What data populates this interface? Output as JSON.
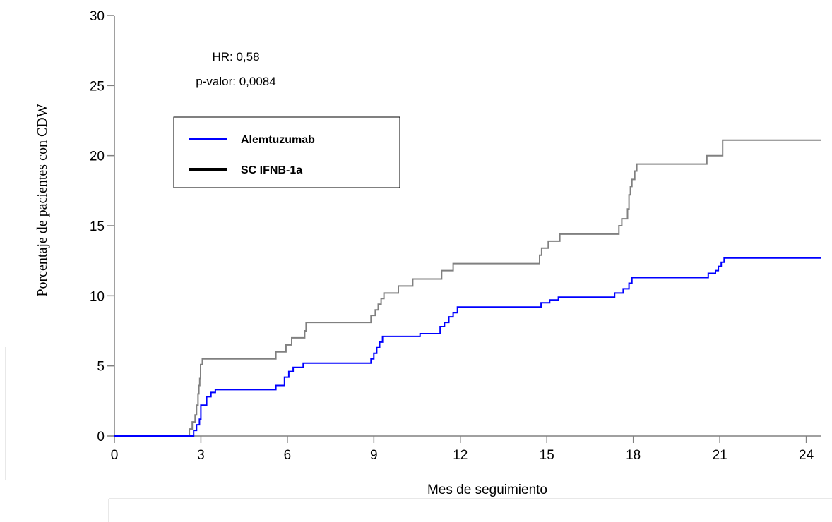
{
  "chart_data": {
    "type": "line",
    "xlabel": "Mes de seguimiento",
    "ylabel": "Porcentaje de pacientes con CDW",
    "xlim": [
      0,
      24.5
    ],
    "ylim": [
      0,
      30
    ],
    "xticks": [
      0,
      3,
      6,
      9,
      12,
      15,
      18,
      21,
      24
    ],
    "yticks": [
      0,
      5,
      10,
      15,
      20,
      25,
      30
    ],
    "grid": false,
    "legend_placement": "upper-left",
    "annotations": [
      "HR: 0,58",
      "p-valor: 0,0084"
    ],
    "series": [
      {
        "name": "Alemtuzumab",
        "color": "#0000ff",
        "line_style": "step",
        "points": [
          [
            0,
            0
          ],
          [
            2.75,
            0
          ],
          [
            2.75,
            0.4
          ],
          [
            2.85,
            0.4
          ],
          [
            2.85,
            0.8
          ],
          [
            2.95,
            0.8
          ],
          [
            2.95,
            1.2
          ],
          [
            3.0,
            1.2
          ],
          [
            3.0,
            2.2
          ],
          [
            3.2,
            2.2
          ],
          [
            3.2,
            2.8
          ],
          [
            3.35,
            2.8
          ],
          [
            3.35,
            3.1
          ],
          [
            3.5,
            3.1
          ],
          [
            3.5,
            3.3
          ],
          [
            5.6,
            3.3
          ],
          [
            5.6,
            3.6
          ],
          [
            5.9,
            3.6
          ],
          [
            5.9,
            4.2
          ],
          [
            6.05,
            4.2
          ],
          [
            6.05,
            4.6
          ],
          [
            6.2,
            4.6
          ],
          [
            6.2,
            4.9
          ],
          [
            6.55,
            4.9
          ],
          [
            6.55,
            5.2
          ],
          [
            8.9,
            5.2
          ],
          [
            8.9,
            5.5
          ],
          [
            9.0,
            5.5
          ],
          [
            9.0,
            5.9
          ],
          [
            9.1,
            5.9
          ],
          [
            9.1,
            6.3
          ],
          [
            9.2,
            6.3
          ],
          [
            9.2,
            6.7
          ],
          [
            9.3,
            6.7
          ],
          [
            9.3,
            7.1
          ],
          [
            10.6,
            7.1
          ],
          [
            10.6,
            7.3
          ],
          [
            11.3,
            7.3
          ],
          [
            11.3,
            7.8
          ],
          [
            11.45,
            7.8
          ],
          [
            11.45,
            8.1
          ],
          [
            11.6,
            8.1
          ],
          [
            11.6,
            8.5
          ],
          [
            11.75,
            8.5
          ],
          [
            11.75,
            8.8
          ],
          [
            11.9,
            8.8
          ],
          [
            11.9,
            9.2
          ],
          [
            14.8,
            9.2
          ],
          [
            14.8,
            9.5
          ],
          [
            15.1,
            9.5
          ],
          [
            15.1,
            9.7
          ],
          [
            15.4,
            9.7
          ],
          [
            15.4,
            9.9
          ],
          [
            17.35,
            9.9
          ],
          [
            17.35,
            10.2
          ],
          [
            17.65,
            10.2
          ],
          [
            17.65,
            10.5
          ],
          [
            17.85,
            10.5
          ],
          [
            17.85,
            10.9
          ],
          [
            17.95,
            10.9
          ],
          [
            17.95,
            11.3
          ],
          [
            20.6,
            11.3
          ],
          [
            20.6,
            11.6
          ],
          [
            20.85,
            11.6
          ],
          [
            20.85,
            11.8
          ],
          [
            20.95,
            11.8
          ],
          [
            20.95,
            12.1
          ],
          [
            21.05,
            12.1
          ],
          [
            21.05,
            12.4
          ],
          [
            21.15,
            12.4
          ],
          [
            21.15,
            12.7
          ],
          [
            24.5,
            12.7
          ]
        ]
      },
      {
        "name": "SC IFNB-1a",
        "color": "#808080",
        "line_style": "step",
        "points": [
          [
            0,
            0
          ],
          [
            2.6,
            0
          ],
          [
            2.6,
            0.5
          ],
          [
            2.7,
            0.5
          ],
          [
            2.7,
            1.0
          ],
          [
            2.8,
            1.0
          ],
          [
            2.8,
            1.5
          ],
          [
            2.85,
            1.5
          ],
          [
            2.85,
            2.2
          ],
          [
            2.9,
            2.2
          ],
          [
            2.9,
            3.0
          ],
          [
            2.93,
            3.0
          ],
          [
            2.93,
            3.6
          ],
          [
            2.96,
            3.6
          ],
          [
            2.96,
            4.1
          ],
          [
            2.99,
            4.1
          ],
          [
            2.99,
            5.1
          ],
          [
            3.05,
            5.1
          ],
          [
            3.05,
            5.5
          ],
          [
            5.6,
            5.5
          ],
          [
            5.6,
            6.0
          ],
          [
            5.95,
            6.0
          ],
          [
            5.95,
            6.5
          ],
          [
            6.15,
            6.5
          ],
          [
            6.15,
            7.0
          ],
          [
            6.6,
            7.0
          ],
          [
            6.6,
            7.5
          ],
          [
            6.65,
            7.5
          ],
          [
            6.65,
            8.1
          ],
          [
            8.9,
            8.1
          ],
          [
            8.9,
            8.6
          ],
          [
            9.05,
            8.6
          ],
          [
            9.05,
            9.0
          ],
          [
            9.15,
            9.0
          ],
          [
            9.15,
            9.4
          ],
          [
            9.25,
            9.4
          ],
          [
            9.25,
            9.8
          ],
          [
            9.35,
            9.8
          ],
          [
            9.35,
            10.2
          ],
          [
            9.85,
            10.2
          ],
          [
            9.85,
            10.7
          ],
          [
            10.35,
            10.7
          ],
          [
            10.35,
            11.2
          ],
          [
            11.35,
            11.2
          ],
          [
            11.35,
            11.8
          ],
          [
            11.75,
            11.8
          ],
          [
            11.75,
            12.3
          ],
          [
            14.75,
            12.3
          ],
          [
            14.75,
            12.9
          ],
          [
            14.82,
            12.9
          ],
          [
            14.82,
            13.4
          ],
          [
            15.05,
            13.4
          ],
          [
            15.05,
            13.9
          ],
          [
            15.45,
            13.9
          ],
          [
            15.45,
            14.4
          ],
          [
            17.5,
            14.4
          ],
          [
            17.5,
            15.0
          ],
          [
            17.6,
            15.0
          ],
          [
            17.6,
            15.5
          ],
          [
            17.8,
            15.5
          ],
          [
            17.8,
            16.2
          ],
          [
            17.85,
            16.2
          ],
          [
            17.85,
            17.2
          ],
          [
            17.9,
            17.2
          ],
          [
            17.9,
            17.8
          ],
          [
            17.95,
            17.8
          ],
          [
            17.95,
            18.3
          ],
          [
            18.05,
            18.3
          ],
          [
            18.05,
            18.9
          ],
          [
            18.12,
            18.9
          ],
          [
            18.12,
            19.4
          ],
          [
            20.55,
            19.4
          ],
          [
            20.55,
            20.0
          ],
          [
            21.1,
            20.0
          ],
          [
            21.1,
            21.1
          ],
          [
            24.5,
            21.1
          ]
        ]
      }
    ]
  },
  "legend": {
    "items": [
      {
        "label": "Alemtuzumab",
        "color": "#0000ff"
      },
      {
        "label": "SC IFNB-1a",
        "color": "#000000"
      }
    ]
  }
}
